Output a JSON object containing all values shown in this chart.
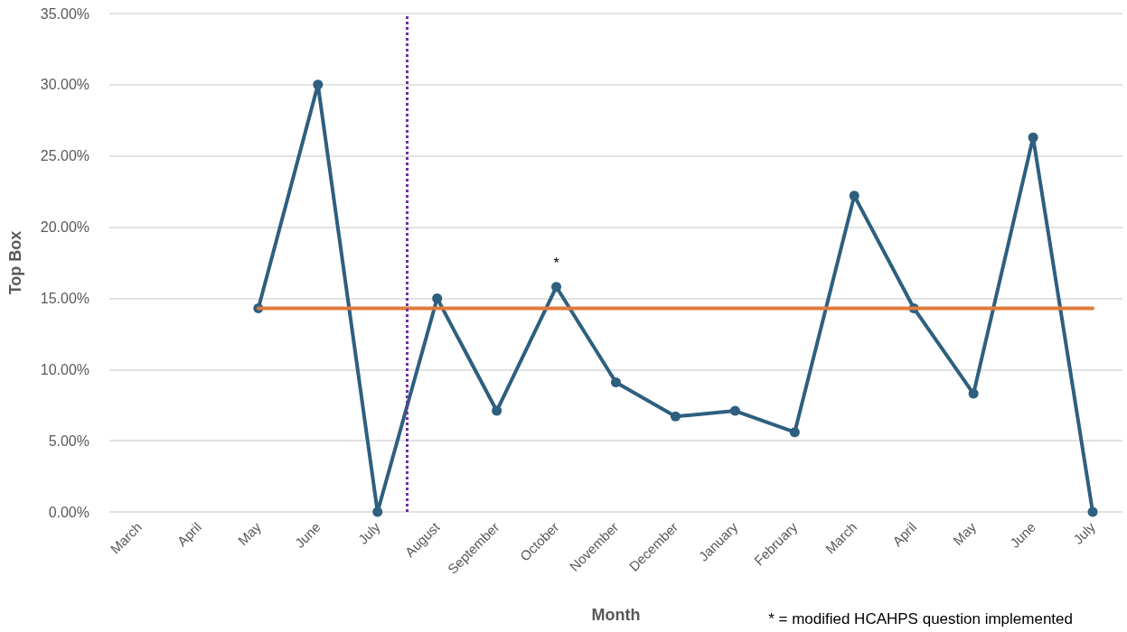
{
  "chart_data": {
    "type": "line",
    "xlabel": "Month",
    "ylabel": "Top Box",
    "categories": [
      "March",
      "April",
      "May",
      "June",
      "July",
      "August",
      "September",
      "October",
      "November",
      "December",
      "January",
      "February",
      "March",
      "April",
      "May",
      "June",
      "July"
    ],
    "series": [
      {
        "color": "#2e5f7f",
        "marker": "circle",
        "values": [
          null,
          null,
          14.3,
          30.0,
          0,
          15.0,
          7.1,
          15.8,
          9.1,
          6.7,
          7.1,
          5.6,
          22.2,
          14.3,
          8.3,
          26.3,
          0
        ]
      },
      {
        "color": "#e07b39",
        "marker": "none",
        "values": [
          null,
          null,
          14.3,
          14.3,
          14.3,
          14.3,
          14.3,
          14.3,
          14.3,
          14.3,
          14.3,
          14.3,
          14.3,
          14.3,
          14.3,
          14.3,
          14.3
        ]
      }
    ],
    "ylim": [
      0,
      35
    ],
    "yticks": [
      {
        "value": 0,
        "label": "0.00%"
      },
      {
        "value": 5,
        "label": "5.00%"
      },
      {
        "value": 10,
        "label": "10.00%"
      },
      {
        "value": 15,
        "label": "15.00%"
      },
      {
        "value": 20,
        "label": "20.00%"
      },
      {
        "value": 25,
        "label": "25.00%"
      },
      {
        "value": 30,
        "label": "30.00%"
      },
      {
        "value": 35,
        "label": "35.00%"
      }
    ],
    "ref_lines": [
      {
        "axis": "x",
        "value": "August",
        "color": "#7030a0",
        "line_style": "dotted"
      }
    ],
    "annotations": [
      {
        "text": "*",
        "x": "October",
        "y": 15.8
      },
      "* = modified HCAHPS question implemented"
    ],
    "grid": "y",
    "line_style": "solid"
  }
}
